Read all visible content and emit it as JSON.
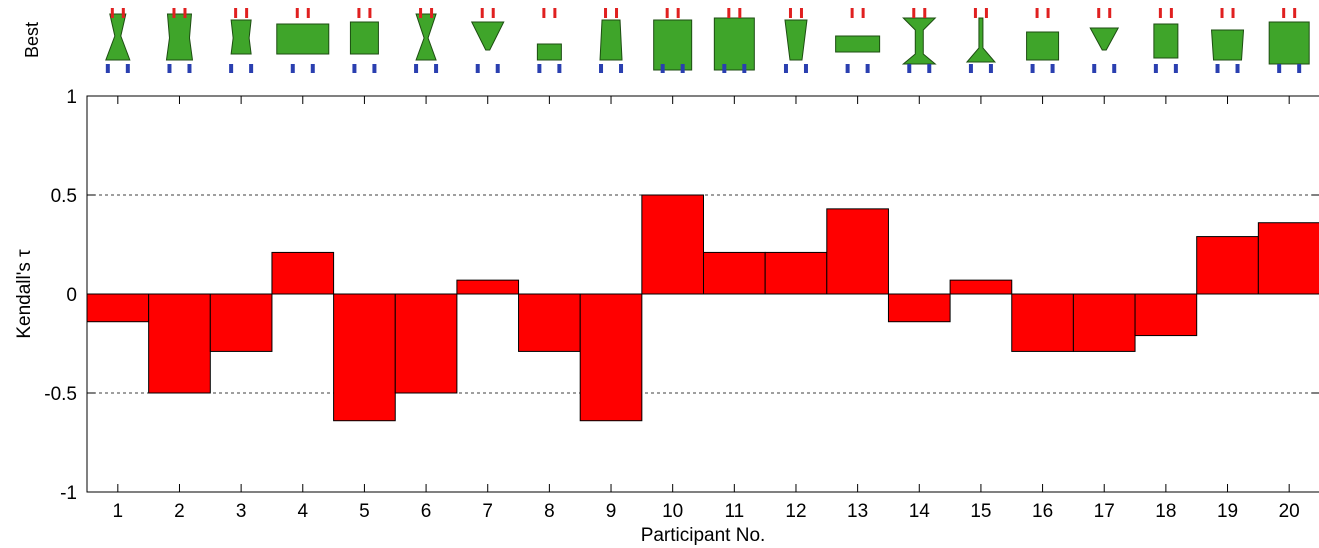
{
  "chart_data": {
    "type": "bar",
    "title": "",
    "xlabel": "Participant No.",
    "ylabel": "Kendall's τ",
    "top_row_label": "Best",
    "categories": [
      "1",
      "2",
      "3",
      "4",
      "5",
      "6",
      "7",
      "8",
      "9",
      "10",
      "11",
      "12",
      "13",
      "14",
      "15",
      "16",
      "17",
      "18",
      "19",
      "20"
    ],
    "values": [
      -0.14,
      -0.5,
      -0.29,
      0.21,
      -0.64,
      -0.5,
      0.07,
      -0.29,
      -0.64,
      0.5,
      0.21,
      0.21,
      0.43,
      -0.14,
      0.07,
      -0.29,
      -0.29,
      -0.21,
      0.29,
      0.36
    ],
    "ylim": [
      -1,
      1
    ],
    "yticks": [
      -1,
      -0.5,
      0,
      0.5,
      1
    ],
    "ytick_labels": [
      "-1",
      "-0.5",
      "0",
      "0.5",
      "1"
    ],
    "grid": "dashed at ±0.5",
    "bar_color": "#ff0000",
    "bar_edge_color": "#000000",
    "thumbnail_colors": {
      "body": "#3fa52a",
      "top_marker": "#e02020",
      "bottom_marker": "#2a3fb0"
    }
  }
}
